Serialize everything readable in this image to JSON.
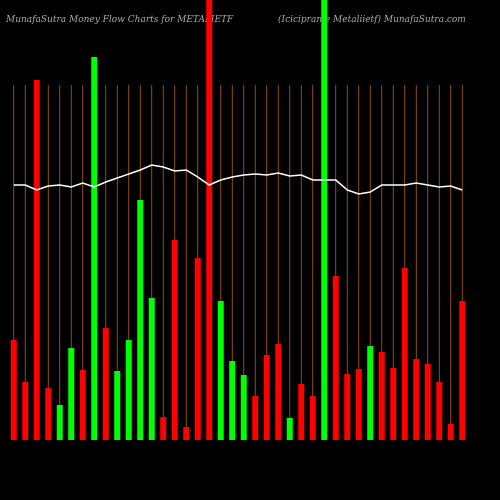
{
  "chart_data": {
    "type": "bar",
    "title": "MunafaSutra  Money Flow  Charts for METALIETF",
    "subtitle": "(Iciciprame    Metaliietf) MunafaSutra.com",
    "background": "#000000",
    "grid": true,
    "grid_color": "#b8620a",
    "ylim": [
      0,
      440
    ],
    "series": [
      {
        "name": "money-flow",
        "type": "bar",
        "values": [
          100,
          58,
          360,
          52,
          35,
          92,
          70,
          383,
          112,
          69,
          100,
          240,
          142,
          23,
          200,
          13,
          182,
          440,
          139,
          79,
          65,
          44,
          85,
          96,
          22,
          56,
          44,
          440,
          164,
          66,
          71,
          94,
          88,
          72,
          172,
          81,
          76,
          58,
          16,
          139
        ],
        "colors": [
          "#ff0000",
          "#ff0000",
          "#ff0000",
          "#ff0000",
          "#00ff00",
          "#00ff00",
          "#ff0000",
          "#00ff00",
          "#ff0000",
          "#00ff00",
          "#00ff00",
          "#00ff00",
          "#00ff00",
          "#ff0000",
          "#ff0000",
          "#ff0000",
          "#ff0000",
          "#ff0000",
          "#00ff00",
          "#00ff00",
          "#00ff00",
          "#ff0000",
          "#ff0000",
          "#ff0000",
          "#00ff00",
          "#ff0000",
          "#ff0000",
          "#00ff00",
          "#ff0000",
          "#ff0000",
          "#ff0000",
          "#00ff00",
          "#ff0000",
          "#ff0000",
          "#ff0000",
          "#ff0000",
          "#ff0000",
          "#ff0000",
          "#ff0000",
          "#ff0000"
        ]
      },
      {
        "name": "price",
        "type": "line",
        "color": "#ffffff",
        "values": [
          255,
          255,
          250,
          254,
          255,
          253,
          257,
          253,
          258,
          262,
          266,
          270,
          275,
          273,
          269,
          270,
          263,
          255,
          260,
          263,
          265,
          266,
          265,
          267,
          264,
          265,
          260,
          260,
          260,
          250,
          246,
          248,
          255,
          255,
          255,
          257,
          255,
          253,
          254,
          250
        ]
      }
    ]
  }
}
